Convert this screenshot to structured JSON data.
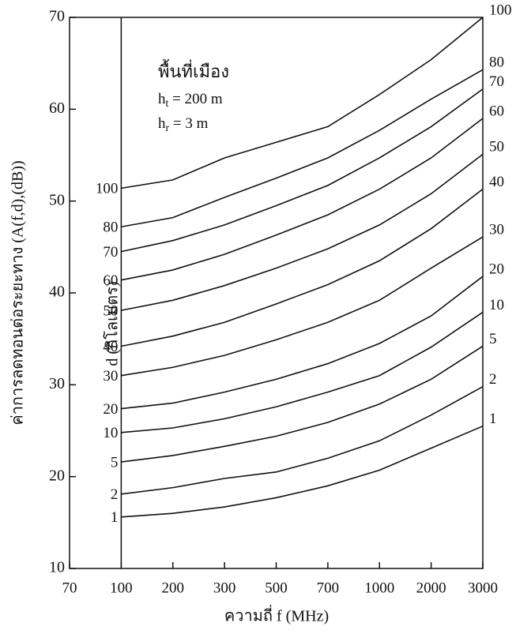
{
  "chart_data": {
    "type": "line",
    "y_label": "ค่าการลดทอนต่อระยะทาง (A(f,d),(dB))",
    "x_label": "ความถี่ f (MHz)",
    "series_label": "d (กิโลเมตร)",
    "annotation": "พื้นที่เมือง",
    "params": [
      {
        "symbol": "h",
        "subscript": "t",
        "value": " = 200 m"
      },
      {
        "symbol": "h",
        "subscript": "r",
        "value": " = 3 m"
      }
    ],
    "categories": [
      "70",
      "100",
      "200",
      "300",
      "500",
      "700",
      "1000",
      "2000",
      "3000"
    ],
    "ylim": [
      10,
      70
    ],
    "yticks": [
      10,
      20,
      30,
      40,
      50,
      60,
      70
    ],
    "series": [
      {
        "name": "100",
        "color": "#111111",
        "values": [
          null,
          51.4,
          52.3,
          54.7,
          56.4,
          58.1,
          61.6,
          65.4,
          70.0
        ]
      },
      {
        "name": "80",
        "color": "#111111",
        "values": [
          null,
          47.2,
          48.2,
          50.4,
          52.5,
          54.7,
          57.7,
          61.1,
          64.3
        ]
      },
      {
        "name": "70",
        "color": "#111111",
        "values": [
          null,
          44.5,
          45.7,
          47.4,
          49.5,
          51.7,
          54.7,
          58.1,
          62.2
        ]
      },
      {
        "name": "60",
        "color": "#111111",
        "values": [
          null,
          41.4,
          42.5,
          44.2,
          46.3,
          48.5,
          51.3,
          54.7,
          59.0
        ]
      },
      {
        "name": "50",
        "color": "#111111",
        "values": [
          null,
          38.1,
          39.2,
          40.8,
          42.7,
          44.8,
          47.4,
          50.8,
          55.1
        ]
      },
      {
        "name": "40",
        "color": "#111111",
        "values": [
          null,
          34.2,
          35.3,
          36.8,
          38.8,
          40.9,
          43.5,
          47.0,
          51.3
        ]
      },
      {
        "name": "30",
        "color": "#111111",
        "values": [
          null,
          31.0,
          31.9,
          33.2,
          34.9,
          36.8,
          39.2,
          42.7,
          46.1
        ]
      },
      {
        "name": "20",
        "color": "#111111",
        "values": [
          null,
          27.4,
          28.0,
          29.2,
          30.6,
          32.3,
          34.5,
          37.5,
          41.8
        ]
      },
      {
        "name": "10",
        "color": "#111111",
        "values": [
          null,
          24.8,
          25.3,
          26.3,
          27.6,
          29.2,
          31.0,
          34.1,
          37.9
        ]
      },
      {
        "name": "5",
        "color": "#111111",
        "values": [
          null,
          21.6,
          22.3,
          23.3,
          24.4,
          25.9,
          27.9,
          30.6,
          34.2
        ]
      },
      {
        "name": "2",
        "color": "#111111",
        "values": [
          null,
          18.1,
          18.8,
          19.8,
          20.5,
          22.0,
          23.9,
          26.7,
          29.8
        ]
      },
      {
        "name": "1",
        "color": "#111111",
        "values": [
          null,
          15.6,
          16.0,
          16.7,
          17.7,
          19.0,
          20.7,
          23.1,
          25.5
        ]
      }
    ]
  }
}
